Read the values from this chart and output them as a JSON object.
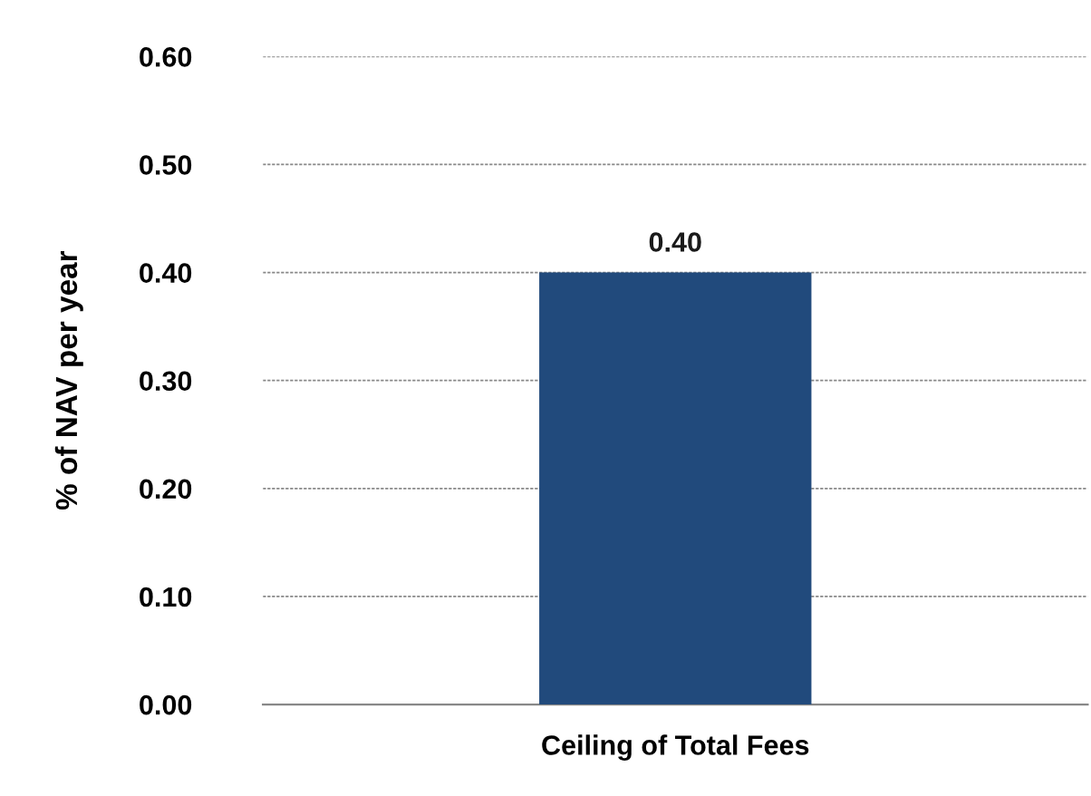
{
  "chart_data": {
    "type": "bar",
    "ylabel": "% of NAV per year",
    "categories": [
      "Ceiling of Total Fees"
    ],
    "values": [
      0.4
    ],
    "color": "#214a7c",
    "data_labels": true,
    "value_labels": [
      "0.40"
    ],
    "ylim": [
      0,
      0.6
    ],
    "yticks": [
      {
        "value": 0,
        "label": "0.00"
      },
      {
        "value": 0.1,
        "label": "0.10"
      },
      {
        "value": 0.2,
        "label": "0.20"
      },
      {
        "value": 0.3,
        "label": "0.30"
      },
      {
        "value": 0.4,
        "label": "0.40"
      },
      {
        "value": 0.5,
        "label": "0.50"
      },
      {
        "value": 0.6,
        "label": "0.60"
      }
    ],
    "grid": "y",
    "legend": false
  }
}
